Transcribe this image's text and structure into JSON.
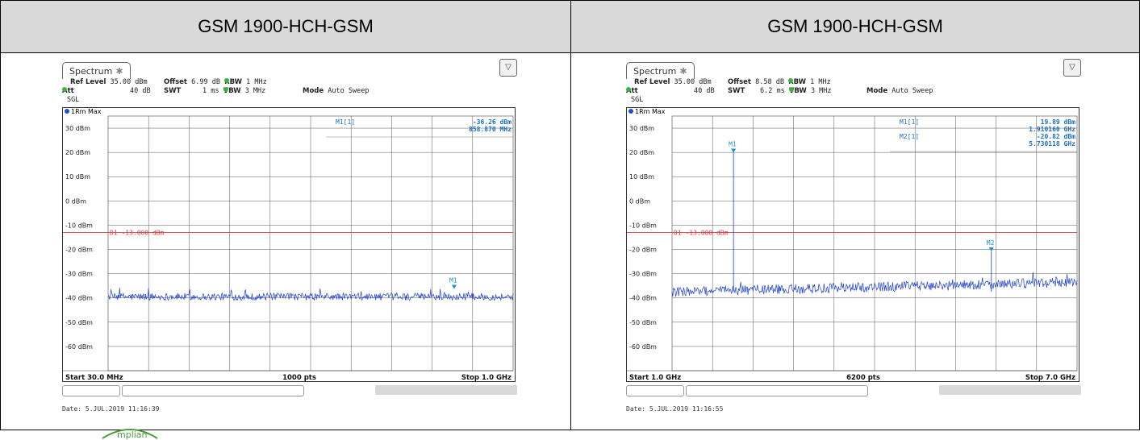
{
  "panels": [
    {
      "header": "GSM 1900-HCH-GSM",
      "tab_label": "Spectrum",
      "params": {
        "ref_level_label": "Ref Level",
        "ref_level": "35.00 dBm",
        "offset_label": "Offset",
        "offset": "6.99 dB",
        "rbw_label": "RBW",
        "rbw": "1 MHz",
        "att_label": "Att",
        "att": "40 dB",
        "swt_label": "SWT",
        "swt": "1 ms",
        "vbw_label": "VBW",
        "vbw": "3 MHz",
        "mode_label": "Mode",
        "mode": "Auto Sweep",
        "sgl": "SGL"
      },
      "trace_label": "1Rm Max",
      "date": "Date: 5.JUL.2019  11:16:39",
      "chart_data": {
        "type": "line",
        "y_unit": "dBm",
        "ylim": [
          -70,
          35
        ],
        "y_ticks": [
          30,
          20,
          10,
          0,
          -10,
          -20,
          -30,
          -40,
          -50,
          -60
        ],
        "y_tick_labels": [
          "30 dBm",
          "20 dBm",
          "10 dBm",
          "0 dBm",
          "-10 dBm",
          "-20 dBm",
          "-30 dBm",
          "-40 dBm",
          "-50 dBm",
          "-60 dBm"
        ],
        "x_start_label": "Start 30.0 MHz",
        "x_center_label": "1000 pts",
        "x_stop_label": "Stop 1.0 GHz",
        "xlim": [
          30.0,
          1000.0
        ],
        "x_unit": "MHz",
        "limit_line": {
          "label": "D1  -13.000 dBm",
          "value": -13.0,
          "color": "#e03c3c"
        },
        "noise_floor": -39.5,
        "noise_amplitude": 1.5,
        "peaks": [],
        "markers": [
          {
            "label": "M1",
            "x": 858.87,
            "y": -36.26
          }
        ],
        "marker_table": [
          {
            "name": "M1[1]",
            "value": "-36.26 dBm",
            "position": "858.870 MHz"
          }
        ],
        "grid": true,
        "trace_color": "#1f3fd0"
      }
    },
    {
      "header": "GSM 1900-HCH-GSM",
      "tab_label": "Spectrum",
      "params": {
        "ref_level_label": "Ref Level",
        "ref_level": "35.00 dBm",
        "offset_label": "Offset",
        "offset": "8.58 dB",
        "rbw_label": "RBW",
        "rbw": "1 MHz",
        "att_label": "Att",
        "att": "40 dB",
        "swt_label": "SWT",
        "swt": "6.2 ms",
        "vbw_label": "VBW",
        "vbw": "3 MHz",
        "mode_label": "Mode",
        "mode": "Auto Sweep",
        "sgl": "SGL"
      },
      "trace_label": "1Rm Max",
      "date": "Date: 5.JUL.2019  11:16:55",
      "chart_data": {
        "type": "line",
        "y_unit": "dBm",
        "ylim": [
          -70,
          35
        ],
        "y_ticks": [
          30,
          20,
          10,
          0,
          -10,
          -20,
          -30,
          -40,
          -50,
          -60
        ],
        "y_tick_labels": [
          "30 dBm",
          "20 dBm",
          "10 dBm",
          "0 dBm",
          "-10 dBm",
          "-20 dBm",
          "-30 dBm",
          "-40 dBm",
          "-50 dBm",
          "-60 dBm"
        ],
        "x_start_label": "Start 1.0 GHz",
        "x_center_label": "6200 pts",
        "x_stop_label": "Stop 7.0 GHz",
        "xlim": [
          1.0,
          7.0
        ],
        "x_unit": "GHz",
        "limit_line": {
          "label": "D1  -13.000 dBm",
          "value": -13.0,
          "color": "#e03c3c"
        },
        "noise_floor": -37.5,
        "noise_floor_end": -33.5,
        "noise_amplitude": 2.0,
        "peaks": [
          {
            "x": 1.91016,
            "y": 19.89
          },
          {
            "x": 5.730118,
            "y": -20.82
          }
        ],
        "markers": [
          {
            "label": "M1",
            "x": 1.91016,
            "y": 19.89
          },
          {
            "label": "M2",
            "x": 5.730118,
            "y": -20.82
          }
        ],
        "marker_table": [
          {
            "name": "M1[1]",
            "value": "19.89 dBm",
            "position": "1.910160 GHz"
          },
          {
            "name": "M2[1]",
            "value": "-20.82 dBm",
            "position": "5.730118 GHz"
          }
        ],
        "grid": true,
        "trace_color": "#1f3fd0"
      }
    }
  ]
}
